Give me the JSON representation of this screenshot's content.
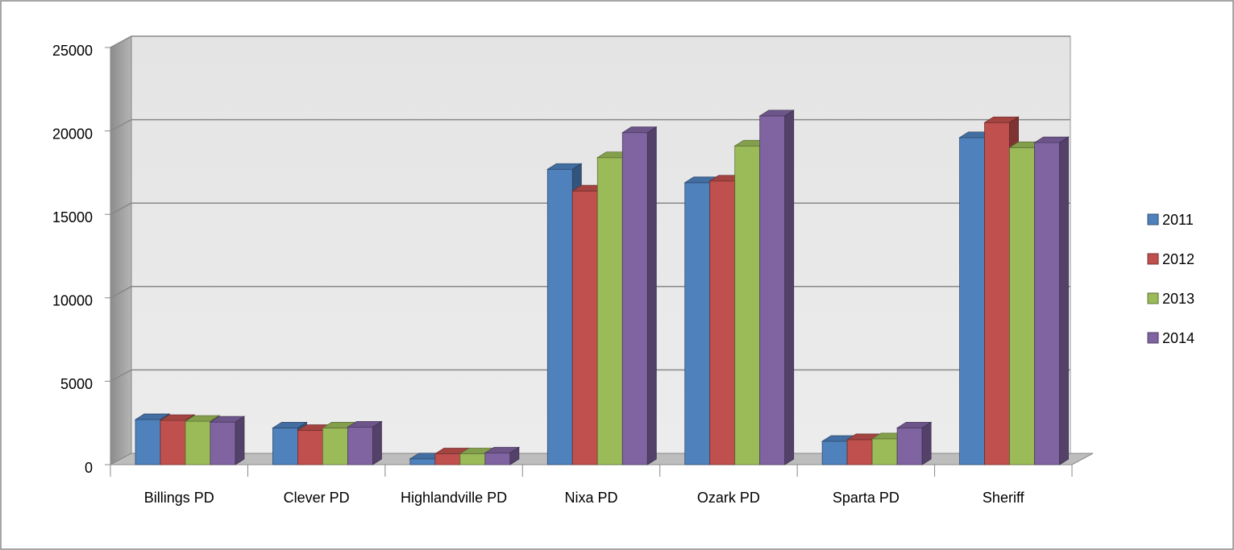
{
  "chart_data": {
    "type": "bar3d",
    "categories": [
      "Billings PD",
      "Clever PD",
      "Highlandville PD",
      "Nixa PD",
      "Ozark PD",
      "Sparta PD",
      "Sheriff"
    ],
    "series": [
      {
        "name": "2011",
        "color": "#4f81bd",
        "values": [
          2700,
          2200,
          350,
          17700,
          16900,
          1400,
          19600
        ]
      },
      {
        "name": "2012",
        "color": "#c0504d",
        "values": [
          2650,
          2050,
          650,
          16400,
          17000,
          1500,
          20500
        ]
      },
      {
        "name": "2013",
        "color": "#9bbb59",
        "values": [
          2600,
          2200,
          650,
          18400,
          19100,
          1550,
          19000
        ]
      },
      {
        "name": "2014",
        "color": "#8064a2",
        "values": [
          2550,
          2250,
          700,
          19900,
          20900,
          2200,
          19300
        ]
      }
    ],
    "ylim": [
      0,
      25000
    ],
    "yticks": [
      0,
      5000,
      10000,
      15000,
      20000,
      25000
    ],
    "grid": true,
    "legend": "right"
  }
}
